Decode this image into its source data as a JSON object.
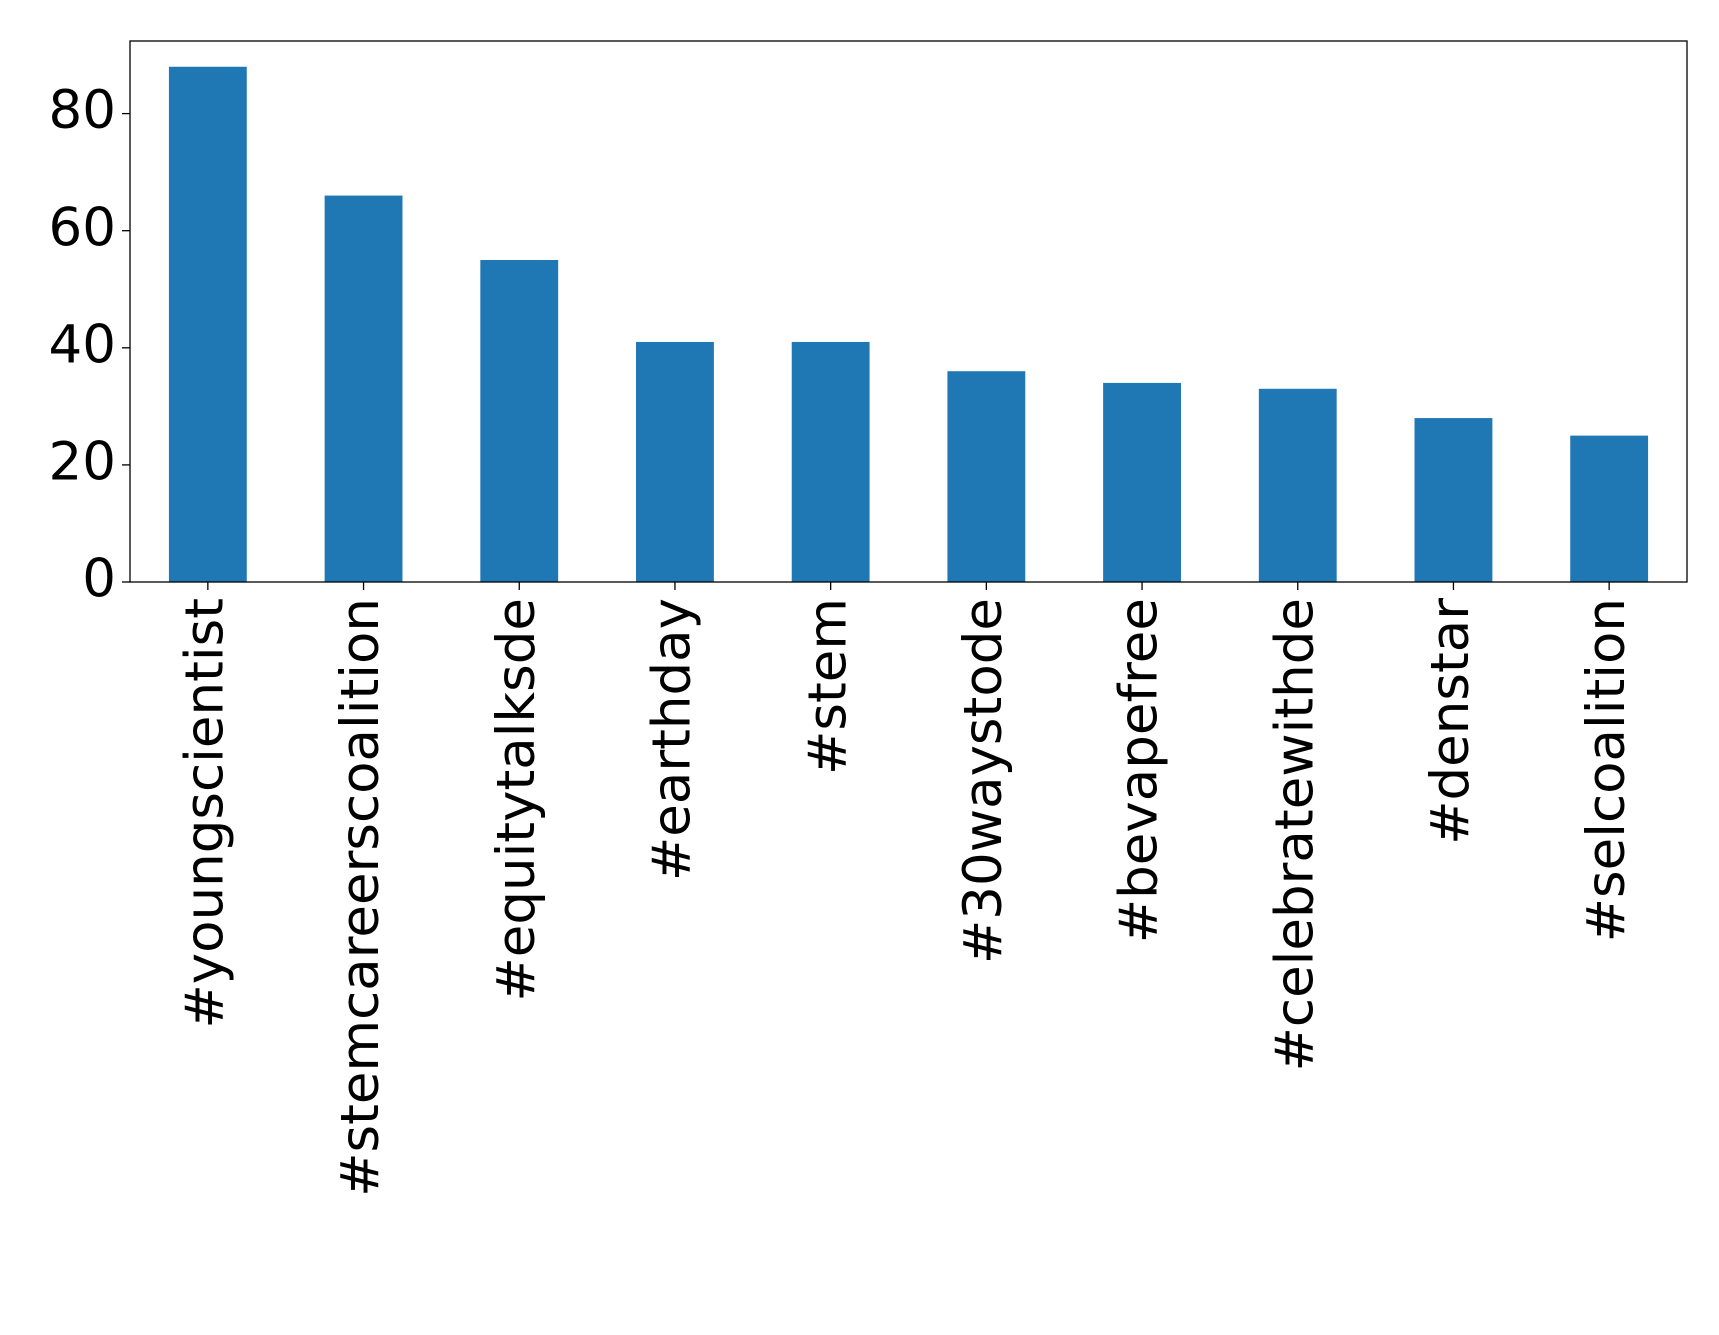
{
  "chart_data": {
    "type": "bar",
    "categories": [
      "#youngscientist",
      "#stemcareerscoalition",
      "#equitytalksde",
      "#earthday",
      "#stem",
      "#30waystode",
      "#bevapefree",
      "#celebratewithde",
      "#denstar",
      "#selcoalition"
    ],
    "values": [
      88,
      66,
      55,
      41,
      41,
      36,
      34,
      33,
      28,
      25
    ],
    "color": "#1f77b4",
    "ylim": [
      0,
      92.4
    ],
    "yticks": [
      0,
      20,
      40,
      60,
      80
    ],
    "grid": false
  }
}
